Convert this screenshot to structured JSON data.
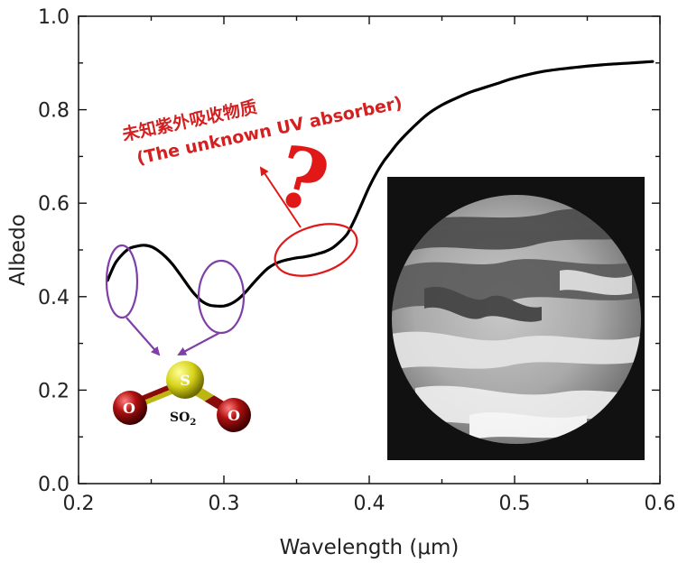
{
  "chart_data": {
    "type": "line",
    "xlabel": "Wavelength (μm)",
    "ylabel": "Albedo",
    "xlim": [
      0.2,
      0.6
    ],
    "ylim": [
      0.0,
      1.0
    ],
    "x_ticks": [
      0.2,
      0.3,
      0.4,
      0.5,
      0.6
    ],
    "y_ticks": [
      0.0,
      0.2,
      0.4,
      0.6,
      0.8,
      1.0
    ],
    "x_tick_labels": [
      "0.2",
      "0.3",
      "0.4",
      "0.5",
      "0.6"
    ],
    "y_tick_labels": [
      "0.0",
      "0.2",
      "0.4",
      "0.6",
      "0.8",
      "1.0"
    ],
    "grid": false,
    "series": [
      {
        "color": "#000000",
        "x": [
          0.22,
          0.225,
          0.23,
          0.235,
          0.24,
          0.245,
          0.25,
          0.255,
          0.26,
          0.265,
          0.27,
          0.275,
          0.28,
          0.285,
          0.29,
          0.295,
          0.3,
          0.305,
          0.31,
          0.315,
          0.32,
          0.325,
          0.33,
          0.335,
          0.34,
          0.345,
          0.35,
          0.355,
          0.36,
          0.365,
          0.37,
          0.375,
          0.38,
          0.385,
          0.39,
          0.395,
          0.4,
          0.405,
          0.41,
          0.415,
          0.42,
          0.43,
          0.44,
          0.45,
          0.46,
          0.47,
          0.48,
          0.49,
          0.5,
          0.52,
          0.54,
          0.56,
          0.58,
          0.595
        ],
        "y": [
          0.435,
          0.47,
          0.49,
          0.503,
          0.508,
          0.51,
          0.507,
          0.498,
          0.485,
          0.468,
          0.447,
          0.425,
          0.405,
          0.39,
          0.382,
          0.38,
          0.38,
          0.385,
          0.395,
          0.41,
          0.428,
          0.445,
          0.46,
          0.47,
          0.476,
          0.48,
          0.483,
          0.485,
          0.488,
          0.492,
          0.497,
          0.505,
          0.518,
          0.535,
          0.565,
          0.6,
          0.635,
          0.665,
          0.69,
          0.71,
          0.73,
          0.762,
          0.79,
          0.81,
          0.825,
          0.838,
          0.848,
          0.858,
          0.868,
          0.882,
          0.89,
          0.896,
          0.9,
          0.903
        ]
      }
    ],
    "annotations": {
      "unknown_absorber_cn": "未知紫外吸收物质",
      "unknown_absorber_en": "(The unknown UV absorber)",
      "question_mark": "?",
      "molecule_label": "SO",
      "molecule_subscript": "2",
      "atom_sulfur": "S",
      "atom_oxygen_left": "O",
      "atom_oxygen_right": "O"
    },
    "colors": {
      "curve": "#000000",
      "so2_markers": "#7f3fa8",
      "uv_absorber_marker": "#e01818",
      "annotation_text": "#d42020"
    }
  }
}
